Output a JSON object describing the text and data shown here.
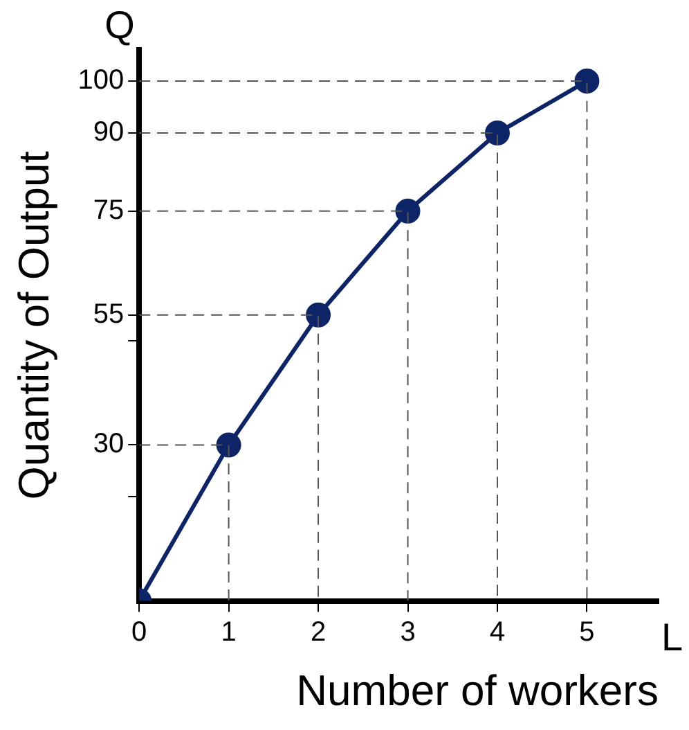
{
  "chart_data": {
    "type": "line",
    "xlabel": "Number of workers",
    "ylabel": "Quantity of Output",
    "annotations": [
      "Q",
      "L"
    ],
    "x": [
      0,
      1,
      2,
      3,
      4,
      5
    ],
    "series": [
      {
        "color": "#555555",
        "x": [
          0,
          1,
          1
        ],
        "values": [
          30,
          30,
          0
        ],
        "line_style": "dashed",
        "marker": "none"
      },
      {
        "color": "#555555",
        "x": [
          0,
          2,
          2
        ],
        "values": [
          55,
          55,
          0
        ],
        "line_style": "dashed",
        "marker": "none"
      },
      {
        "color": "#555555",
        "x": [
          0,
          3,
          3
        ],
        "values": [
          75,
          75,
          0
        ],
        "line_style": "dashed",
        "marker": "none"
      },
      {
        "color": "#555555",
        "x": [
          0,
          4,
          4
        ],
        "values": [
          90,
          90,
          0
        ],
        "line_style": "dashed",
        "marker": "none"
      },
      {
        "color": "#555555",
        "x": [
          0,
          5,
          5
        ],
        "values": [
          100,
          100,
          0
        ],
        "line_style": "dashed",
        "marker": "none"
      },
      {
        "color": "#0d2466",
        "values": [
          0,
          30,
          55,
          75,
          90,
          100
        ]
      }
    ],
    "xlim": [
      0,
      5.8
    ],
    "xticks": [
      0,
      1,
      2,
      3,
      4,
      5
    ],
    "ylim": [
      0,
      106
    ],
    "yticks": [
      30,
      55,
      75,
      90,
      100,
      {
        "value": 20,
        "label": null
      },
      {
        "value": 50,
        "label": null
      }
    ],
    "grid": false,
    "legend": false,
    "marker": "circle",
    "line_style": "solid"
  }
}
